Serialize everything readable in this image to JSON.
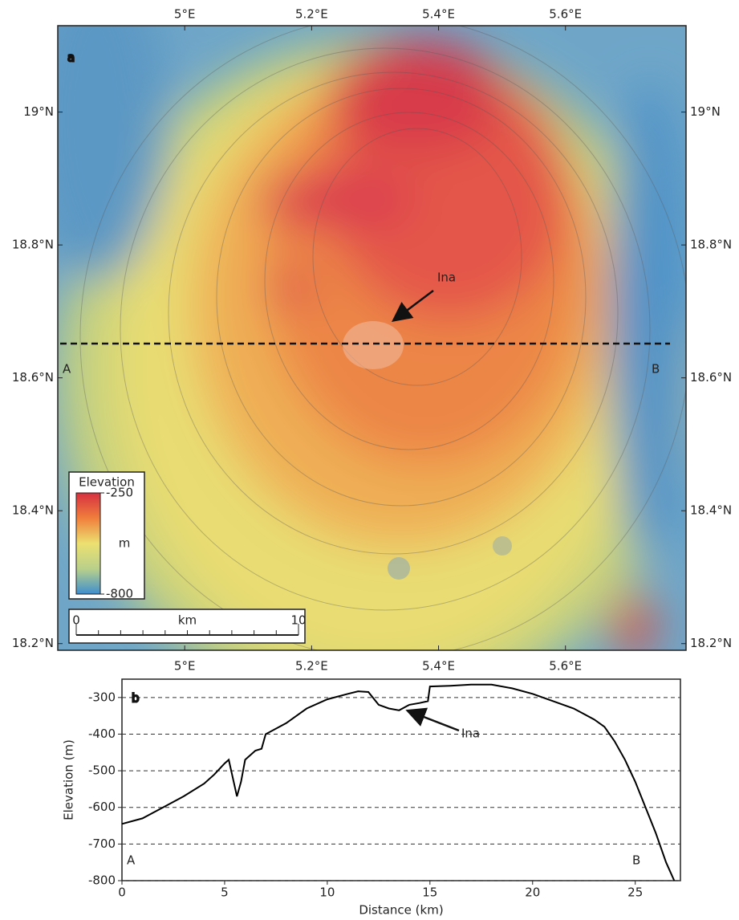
{
  "chart_data": [
    {
      "type": "map",
      "label": "a",
      "xlim": [
        4.8,
        5.79
      ],
      "ylim": [
        18.19,
        19.13
      ],
      "xticks": [
        {
          "value": 5,
          "label": "5°E"
        },
        {
          "value": 5.2,
          "label": "5.2°E"
        },
        {
          "value": 5.4,
          "label": "5.4°E"
        },
        {
          "value": 5.6,
          "label": "5.6°E"
        }
      ],
      "yticks": [
        {
          "value": 19,
          "label": "19°N"
        },
        {
          "value": 18.8,
          "label": "18.8°N"
        },
        {
          "value": 18.6,
          "label": "18.6°N"
        },
        {
          "value": 18.4,
          "label": "18.4°N"
        },
        {
          "value": 18.2,
          "label": "18.2°N"
        }
      ],
      "annotations": [
        "Ina",
        "A",
        "B"
      ],
      "colorbar": {
        "title": "Elevation",
        "unit": "m",
        "ticks": [
          -250,
          -800
        ],
        "colors": [
          "#d7303f",
          "#f07f3c",
          "#ece070",
          "#b9d08a",
          "#3f8fcf"
        ]
      },
      "scalebar": {
        "unit": "km",
        "ticks": [
          0,
          10
        ]
      }
    },
    {
      "type": "line",
      "label": "b",
      "xlabel": "Distance (km)",
      "ylabel": "Elevation (m)",
      "x": [
        0,
        1,
        2,
        3,
        4,
        4.5,
        5,
        5.2,
        5.4,
        5.6,
        5.8,
        6,
        6.5,
        6.8,
        7,
        8,
        9,
        10,
        11,
        11.5,
        12,
        12.5,
        13,
        13.5,
        14,
        14.5,
        14.9,
        15,
        16,
        17,
        18,
        19,
        20,
        21,
        22,
        23,
        23.5,
        24,
        24.5,
        25,
        25.5,
        26,
        26.5,
        26.9
      ],
      "series": [
        {
          "color": "#000000",
          "values": [
            -645,
            -630,
            -600,
            -570,
            -535,
            -510,
            -480,
            -470,
            -520,
            -570,
            -530,
            -470,
            -445,
            -440,
            -400,
            -370,
            -330,
            -305,
            -290,
            -283,
            -285,
            -320,
            -330,
            -335,
            -320,
            -315,
            -310,
            -270,
            -268,
            -265,
            -265,
            -275,
            -290,
            -310,
            -330,
            -360,
            -380,
            -420,
            -470,
            -530,
            -600,
            -670,
            -750,
            -800
          ]
        }
      ],
      "xlim": [
        0,
        27.2
      ],
      "ylim": [
        -800,
        -250
      ],
      "xticks": [
        0,
        5,
        10,
        15,
        20,
        25
      ],
      "yticks": [
        -300,
        -400,
        -500,
        -600,
        -700,
        -800
      ],
      "grid": true,
      "annotations": [
        "Ina",
        "A",
        "B"
      ]
    }
  ]
}
